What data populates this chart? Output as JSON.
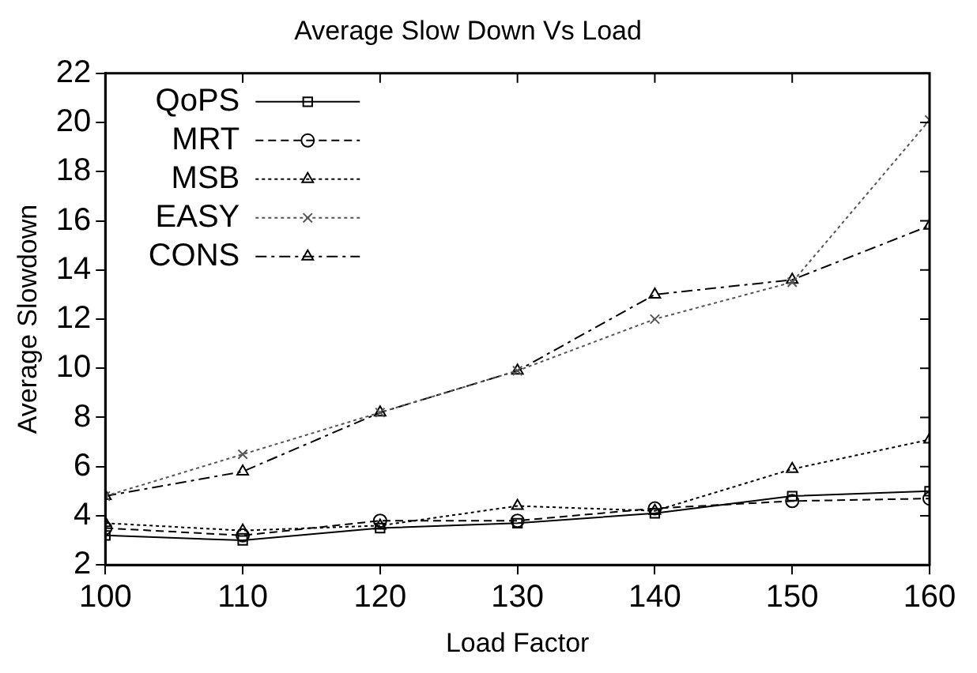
{
  "chart_data": {
    "type": "line",
    "title": "Average Slow Down Vs Load",
    "xlabel": "Load Factor",
    "ylabel": "Average Slowdown",
    "x": [
      100,
      110,
      120,
      130,
      140,
      150,
      160
    ],
    "series": [
      {
        "name": "QoPS",
        "color": "#000000",
        "marker": "square",
        "line_style": "solid",
        "values": [
          3.2,
          3.0,
          3.5,
          3.7,
          4.1,
          4.8,
          5.0
        ]
      },
      {
        "name": "MRT",
        "color": "#000000",
        "marker": "circle",
        "line_style": "dashed",
        "values": [
          3.5,
          3.2,
          3.8,
          3.8,
          4.3,
          4.6,
          4.7
        ]
      },
      {
        "name": "MSB",
        "color": "#000000",
        "marker": "triangle",
        "line_style": "dotted",
        "values": [
          3.7,
          3.4,
          3.6,
          4.4,
          4.2,
          5.9,
          7.1
        ]
      },
      {
        "name": "EASY",
        "color": "#555555",
        "marker": "cross",
        "line_style": "dotted",
        "values": [
          4.8,
          6.5,
          8.2,
          9.9,
          12.0,
          13.5,
          20.1
        ]
      },
      {
        "name": "CONS",
        "color": "#000000",
        "marker": "triangle",
        "line_style": "dashdot",
        "values": [
          4.8,
          5.8,
          8.2,
          9.9,
          13.0,
          13.6,
          15.8
        ]
      }
    ],
    "xlim": [
      100,
      160
    ],
    "xticks": [
      100,
      110,
      120,
      130,
      140,
      150,
      160
    ],
    "ylim": [
      2,
      22
    ],
    "yticks": [
      2,
      4,
      6,
      8,
      10,
      12,
      14,
      16,
      18,
      20,
      22
    ],
    "grid": false,
    "legend": "top left"
  }
}
